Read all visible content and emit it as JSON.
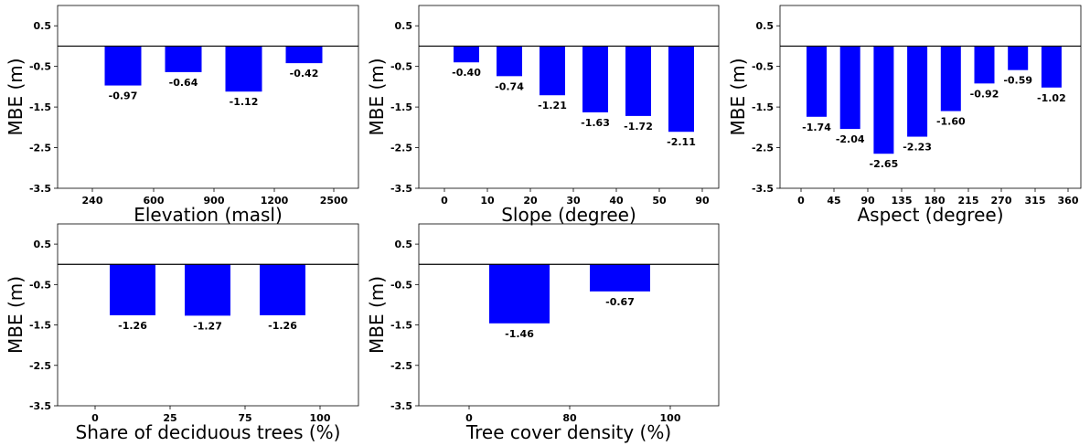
{
  "style": {
    "bar_color": "#0000ff",
    "axis_color": "#000000",
    "zero_line_color": "#000000"
  },
  "chart_data": [
    {
      "type": "bar",
      "xlabel": "Elevation (masl)",
      "ylabel": "MBE (m)",
      "ylim": [
        -3.5,
        1.0
      ],
      "yticks": [
        "0.5",
        "-0.5",
        "-1.5",
        "-2.5",
        "-3.5"
      ],
      "yticks_values": [
        0.5,
        -0.5,
        -1.5,
        -2.5,
        -3.5
      ],
      "xticks": [
        "240",
        "600",
        "900",
        "1200",
        "2500"
      ],
      "values": [
        -0.97,
        -0.64,
        -1.12,
        -0.42
      ],
      "value_labels": [
        "-0.97",
        "-0.64",
        "-1.12",
        "-0.42"
      ],
      "grid": false
    },
    {
      "type": "bar",
      "xlabel": "Slope (degree)",
      "ylabel": "MBE (m)",
      "ylim": [
        -3.5,
        1.0
      ],
      "yticks": [
        "0.5",
        "-0.5",
        "-1.5",
        "-2.5",
        "-3.5"
      ],
      "yticks_values": [
        0.5,
        -0.5,
        -1.5,
        -2.5,
        -3.5
      ],
      "xticks": [
        "0",
        "10",
        "20",
        "30",
        "40",
        "50",
        "90"
      ],
      "values": [
        -0.4,
        -0.74,
        -1.21,
        -1.63,
        -1.72,
        -2.11
      ],
      "value_labels": [
        "-0.40",
        "-0.74",
        "-1.21",
        "-1.63",
        "-1.72",
        "-2.11"
      ],
      "grid": false
    },
    {
      "type": "bar",
      "xlabel": "Aspect (degree)",
      "ylabel": "MBE (m)",
      "ylim": [
        -3.5,
        1.0
      ],
      "yticks": [
        "0.5",
        "-0.5",
        "-1.5",
        "-2.5",
        "-3.5"
      ],
      "yticks_values": [
        0.5,
        -0.5,
        -1.5,
        -2.5,
        -3.5
      ],
      "xticks": [
        "0",
        "45",
        "90",
        "135",
        "180",
        "215",
        "270",
        "315",
        "360"
      ],
      "values": [
        -1.74,
        -2.04,
        -2.65,
        -2.23,
        -1.6,
        -0.92,
        -0.59,
        -1.02
      ],
      "value_labels": [
        "-1.74",
        "-2.04",
        "-2.65",
        "-2.23",
        "-1.60",
        "-0.92",
        "-0.59",
        "-1.02"
      ],
      "grid": false
    },
    {
      "type": "bar",
      "xlabel": "Share of deciduous trees (%)",
      "ylabel": "MBE (m)",
      "ylim": [
        -3.5,
        1.0
      ],
      "yticks": [
        "0.5",
        "-0.5",
        "-1.5",
        "-2.5",
        "-3.5"
      ],
      "yticks_values": [
        0.5,
        -0.5,
        -1.5,
        -2.5,
        -3.5
      ],
      "xticks": [
        "0",
        "25",
        "75",
        "100"
      ],
      "values": [
        -1.26,
        -1.27,
        -1.26
      ],
      "value_labels": [
        "-1.26",
        "-1.27",
        "-1.26"
      ],
      "grid": false
    },
    {
      "type": "bar",
      "xlabel": "Tree cover density (%)",
      "ylabel": "MBE (m)",
      "ylim": [
        -3.5,
        1.0
      ],
      "yticks": [
        "0.5",
        "-0.5",
        "-1.5",
        "-2.5",
        "-3.5"
      ],
      "yticks_values": [
        0.5,
        -0.5,
        -1.5,
        -2.5,
        -3.5
      ],
      "xticks": [
        "0",
        "80",
        "100"
      ],
      "values": [
        -1.46,
        -0.67
      ],
      "value_labels": [
        "-1.46",
        "-0.67"
      ],
      "grid": false
    }
  ]
}
